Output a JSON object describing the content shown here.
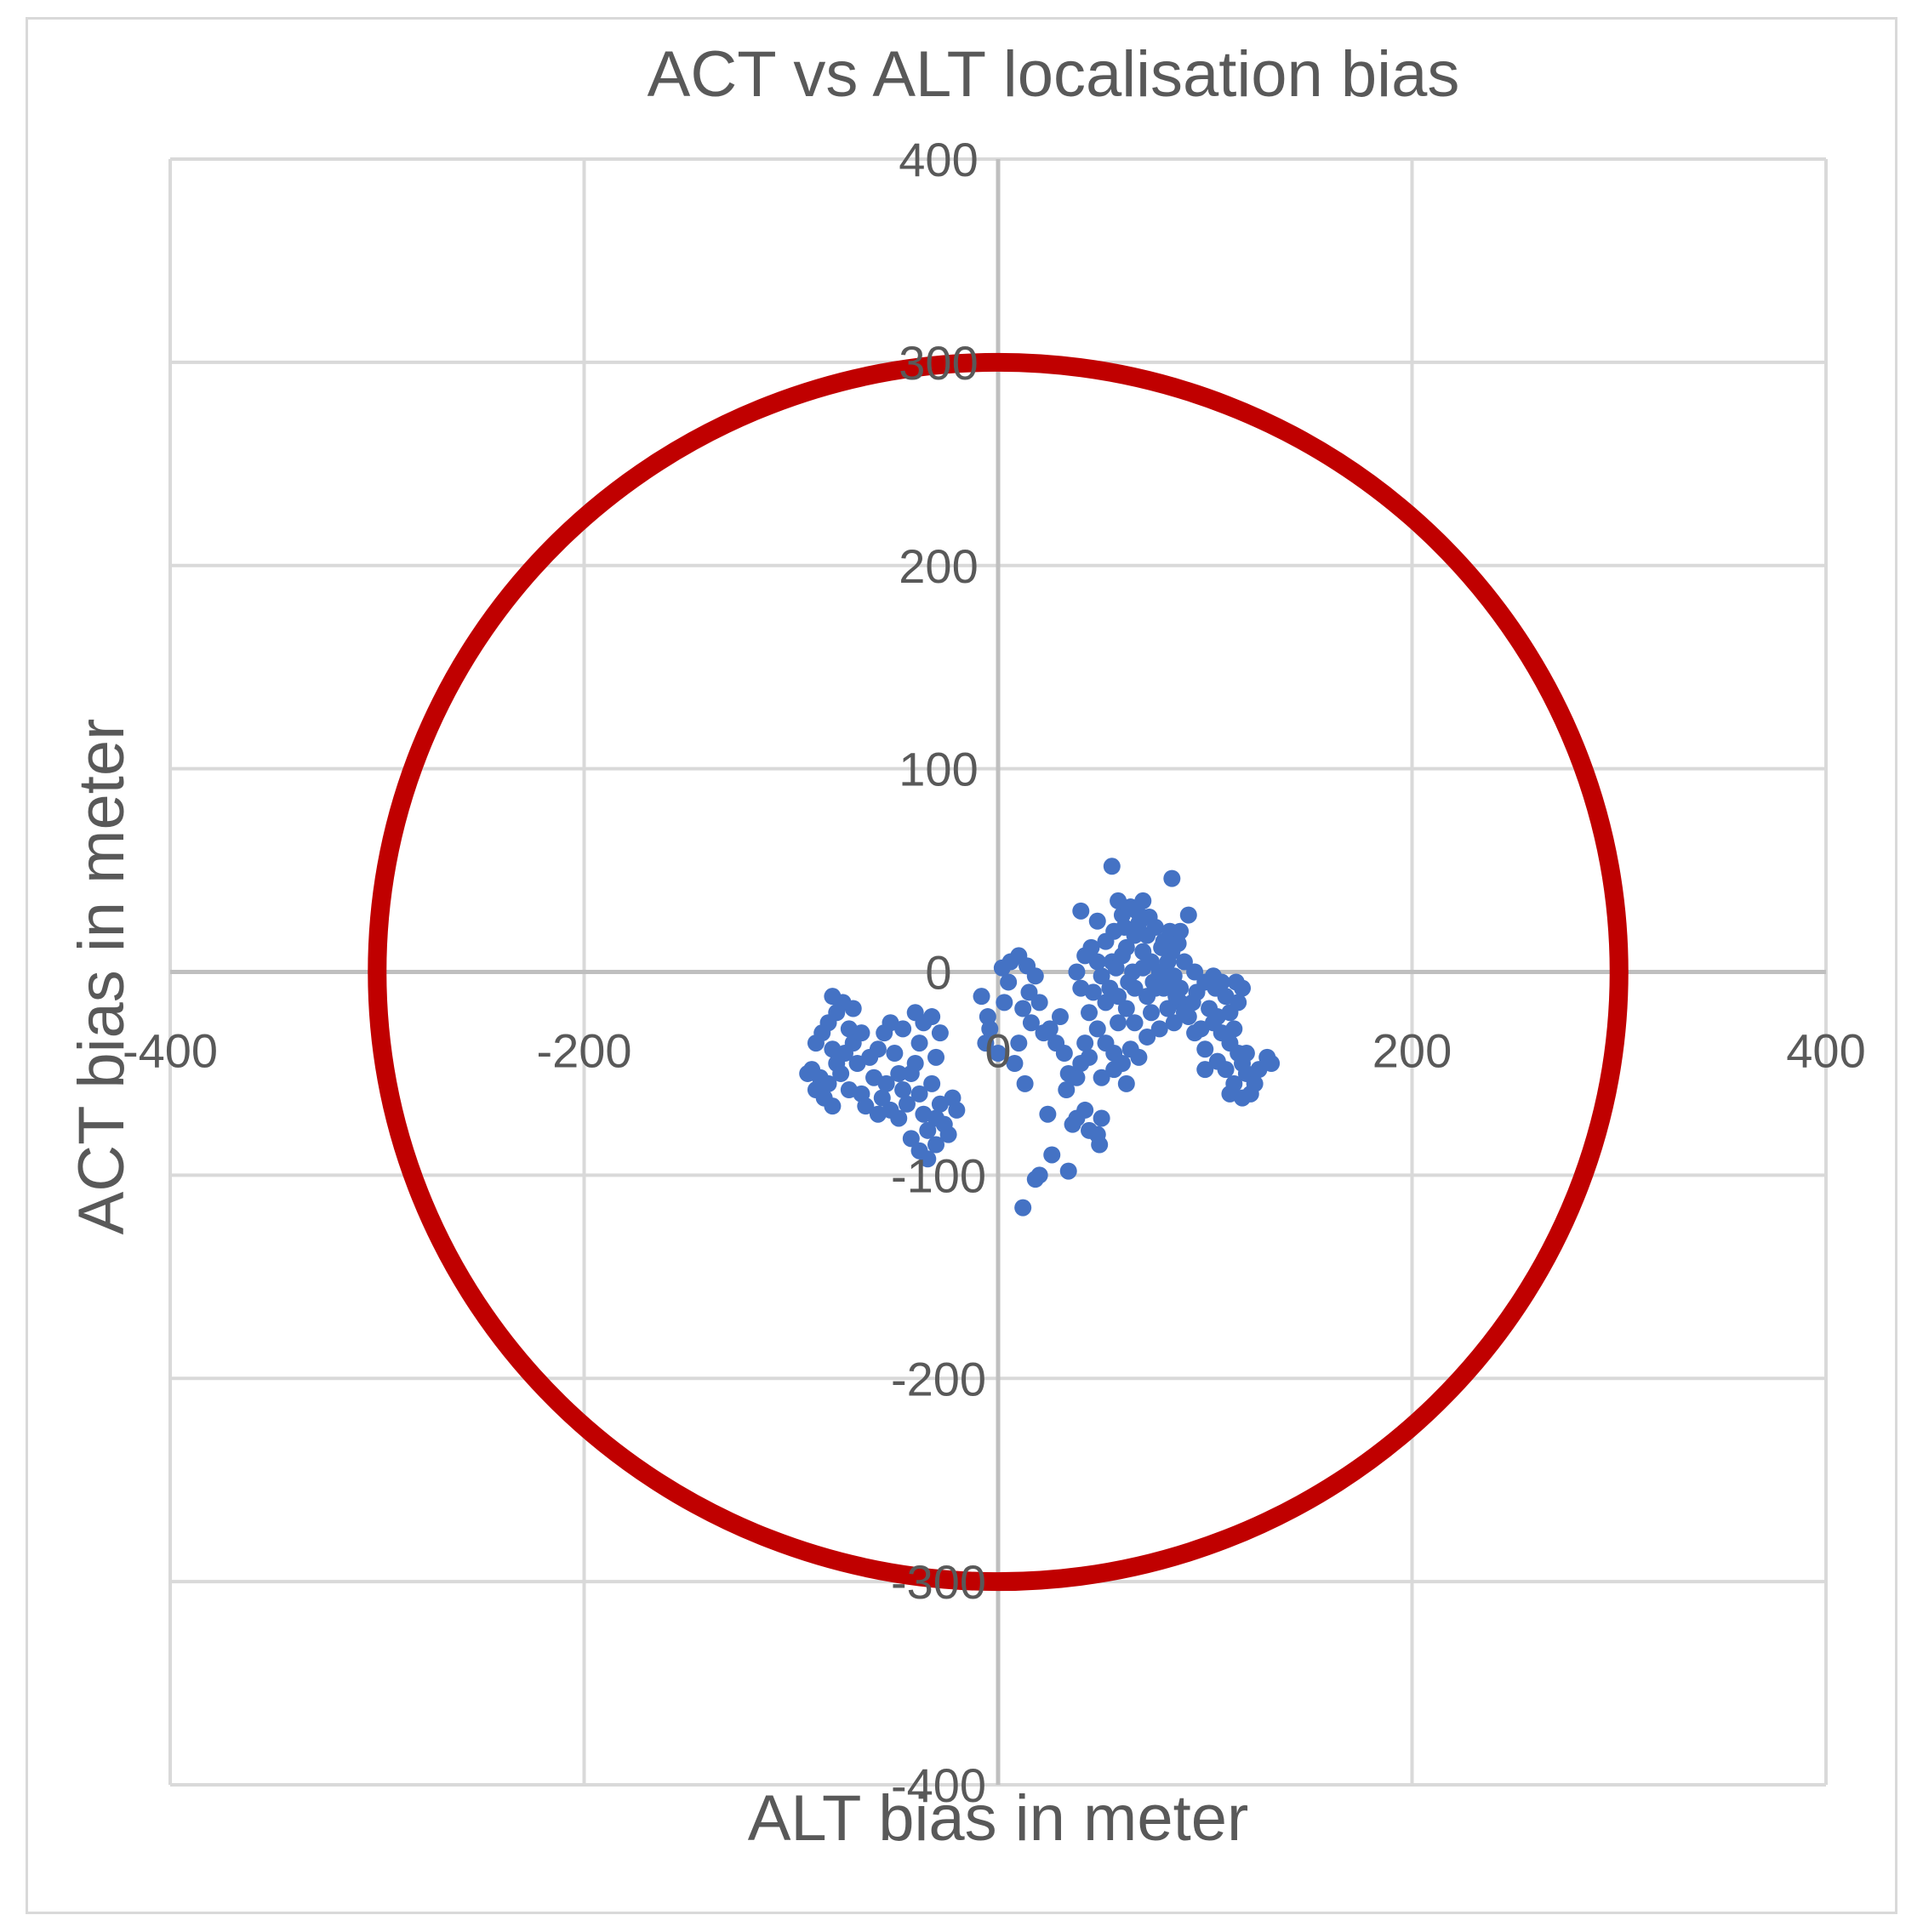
{
  "chart_data": {
    "type": "scatter",
    "title": "ACT vs ALT localisation bias",
    "xlabel": "ALT bias in meter",
    "ylabel": "ACT bias in meter",
    "xlim": [
      -400,
      400
    ],
    "ylim": [
      -400,
      400
    ],
    "x_ticks": [
      "-400",
      "-200",
      "0",
      "200",
      "400"
    ],
    "y_ticks": [
      "400",
      "300",
      "200",
      "100",
      "0",
      "-100",
      "-200",
      "-300",
      "-400"
    ],
    "grid": true,
    "legend": "none",
    "series": [
      {
        "style": "circle-outline",
        "color": "#c00000",
        "center": [
          0,
          0
        ],
        "radius": 300
      },
      {
        "style": "points",
        "color": "#4472c4",
        "points": [
          [
            -80,
            -12
          ],
          [
            -75,
            -15
          ],
          [
            -78,
            -20
          ],
          [
            -82,
            -25
          ],
          [
            -70,
            -18
          ],
          [
            -72,
            -28
          ],
          [
            -85,
            -30
          ],
          [
            -88,
            -35
          ],
          [
            -80,
            -38
          ],
          [
            -74,
            -40
          ],
          [
            -78,
            -45
          ],
          [
            -90,
            -48
          ],
          [
            -86,
            -52
          ],
          [
            -82,
            -55
          ],
          [
            -76,
            -50
          ],
          [
            -72,
            -58
          ],
          [
            -84,
            -62
          ],
          [
            -80,
            -66
          ],
          [
            -88,
            -58
          ],
          [
            -92,
            -50
          ],
          [
            -70,
            -35
          ],
          [
            -66,
            -30
          ],
          [
            -68,
            -45
          ],
          [
            -66,
            -60
          ],
          [
            -62,
            -42
          ],
          [
            -58,
            -38
          ],
          [
            -55,
            -30
          ],
          [
            -52,
            -25
          ],
          [
            -50,
            -40
          ],
          [
            -48,
            -50
          ],
          [
            -54,
            -55
          ],
          [
            -56,
            -62
          ],
          [
            -52,
            -68
          ],
          [
            -48,
            -72
          ],
          [
            -44,
            -65
          ],
          [
            -46,
            -58
          ],
          [
            -42,
            -50
          ],
          [
            -40,
            -45
          ],
          [
            -38,
            -60
          ],
          [
            -36,
            -70
          ],
          [
            -34,
            -78
          ],
          [
            -30,
            -72
          ],
          [
            -28,
            -65
          ],
          [
            -32,
            -55
          ],
          [
            -38,
            -35
          ],
          [
            -36,
            -25
          ],
          [
            -32,
            -22
          ],
          [
            -40,
            -20
          ],
          [
            -46,
            -28
          ],
          [
            -60,
            -52
          ],
          [
            -64,
            -66
          ],
          [
            -58,
            -70
          ],
          [
            -42,
            -82
          ],
          [
            -38,
            -88
          ],
          [
            -30,
            -85
          ],
          [
            -26,
            -75
          ],
          [
            -22,
            -62
          ],
          [
            -20,
            -68
          ],
          [
            -24,
            -80
          ],
          [
            -34,
            -92
          ],
          [
            -28,
            -30
          ],
          [
            -30,
            -42
          ],
          [
            -8,
            -12
          ],
          [
            -5,
            -22
          ],
          [
            -4,
            -28
          ],
          [
            -6,
            -35
          ],
          [
            0,
            -40
          ],
          [
            3,
            -15
          ],
          [
            5,
            -5
          ],
          [
            2,
            2
          ],
          [
            6,
            5
          ],
          [
            10,
            8
          ],
          [
            14,
            3
          ],
          [
            18,
            -2
          ],
          [
            15,
            -10
          ],
          [
            12,
            -18
          ],
          [
            16,
            -25
          ],
          [
            20,
            -15
          ],
          [
            22,
            -30
          ],
          [
            10,
            -35
          ],
          [
            8,
            -45
          ],
          [
            13,
            -55
          ],
          [
            25,
            -28
          ],
          [
            30,
            -22
          ],
          [
            28,
            -35
          ],
          [
            32,
            -40
          ],
          [
            34,
            -50
          ],
          [
            33,
            -58
          ],
          [
            38,
            -52
          ],
          [
            40,
            -45
          ],
          [
            38,
            -72
          ],
          [
            42,
            -68
          ],
          [
            36,
            -75
          ],
          [
            26,
            -90
          ],
          [
            24,
            -70
          ],
          [
            44,
            -78
          ],
          [
            48,
            -80
          ],
          [
            50,
            -72
          ],
          [
            49,
            -85
          ],
          [
            20,
            -100
          ],
          [
            18,
            -102
          ],
          [
            34,
            -98
          ],
          [
            12,
            -116
          ],
          [
            40,
            30
          ],
          [
            48,
            25
          ],
          [
            52,
            15
          ],
          [
            56,
            20
          ],
          [
            60,
            28
          ],
          [
            64,
            32
          ],
          [
            68,
            24
          ],
          [
            72,
            18
          ],
          [
            76,
            22
          ],
          [
            80,
            15
          ],
          [
            84,
            10
          ],
          [
            55,
            5
          ],
          [
            60,
            8
          ],
          [
            65,
            0
          ],
          [
            70,
            2
          ],
          [
            75,
            -5
          ],
          [
            80,
            -8
          ],
          [
            85,
            -2
          ],
          [
            90,
            5
          ],
          [
            95,
            0
          ],
          [
            100,
            -5
          ],
          [
            105,
            -8
          ],
          [
            110,
            -12
          ],
          [
            88,
            -15
          ],
          [
            92,
            -22
          ],
          [
            98,
            -28
          ],
          [
            104,
            -25
          ],
          [
            108,
            -30
          ],
          [
            112,
            -35
          ],
          [
            116,
            -40
          ],
          [
            118,
            -45
          ],
          [
            120,
            -50
          ],
          [
            114,
            -55
          ],
          [
            110,
            -48
          ],
          [
            100,
            -38
          ],
          [
            95,
            -30
          ],
          [
            85,
            -25
          ],
          [
            78,
            -28
          ],
          [
            72,
            -32
          ],
          [
            66,
            -25
          ],
          [
            62,
            -18
          ],
          [
            58,
            -12
          ],
          [
            54,
            -8
          ],
          [
            50,
            -2
          ],
          [
            46,
            -10
          ],
          [
            44,
            -20
          ],
          [
            48,
            -28
          ],
          [
            42,
            -35
          ],
          [
            52,
            -35
          ],
          [
            56,
            -40
          ],
          [
            60,
            -45
          ],
          [
            64,
            -38
          ],
          [
            68,
            -42
          ],
          [
            74,
            -20
          ],
          [
            82,
            -18
          ],
          [
            88,
            -8
          ],
          [
            94,
            -15
          ],
          [
            102,
            -18
          ],
          [
            106,
            -22
          ],
          [
            55,
            52
          ],
          [
            84,
            46
          ],
          [
            92,
            28
          ],
          [
            88,
            20
          ],
          [
            70,
            35
          ],
          [
            58,
            35
          ],
          [
            45,
            12
          ],
          [
            48,
            5
          ],
          [
            52,
            -15
          ],
          [
            40,
            -8
          ],
          [
            38,
            0
          ],
          [
            42,
            8
          ],
          [
            62,
            12
          ],
          [
            66,
            18
          ],
          [
            70,
            10
          ],
          [
            74,
            5
          ],
          [
            78,
            0
          ],
          [
            82,
            5
          ],
          [
            86,
            -12
          ],
          [
            90,
            -20
          ],
          [
            96,
            -10
          ],
          [
            104,
            -2
          ],
          [
            108,
            -5
          ],
          [
            112,
            -20
          ],
          [
            114,
            -28
          ],
          [
            116,
            -15
          ],
          [
            118,
            -8
          ],
          [
            115,
            -5
          ],
          [
            120,
            -40
          ],
          [
            126,
            -48
          ],
          [
            130,
            -42
          ],
          [
            132,
            -45
          ],
          [
            122,
            -60
          ],
          [
            118,
            -62
          ],
          [
            124,
            -55
          ],
          [
            112,
            -60
          ],
          [
            106,
            -44
          ],
          [
            100,
            -48
          ],
          [
            56,
            -48
          ],
          [
            62,
            -55
          ],
          [
            50,
            -52
          ],
          [
            44,
            -42
          ],
          [
            58,
            -25
          ],
          [
            63,
            -5
          ],
          [
            66,
            -8
          ],
          [
            72,
            -12
          ],
          [
            76,
            -8
          ],
          [
            80,
            -2
          ],
          [
            84,
            -5
          ],
          [
            57,
            2
          ],
          [
            61,
            22
          ],
          [
            67,
            30
          ],
          [
            73,
            27
          ],
          [
            79,
            12
          ],
          [
            83,
            20
          ],
          [
            87,
            14
          ]
        ]
      }
    ]
  }
}
